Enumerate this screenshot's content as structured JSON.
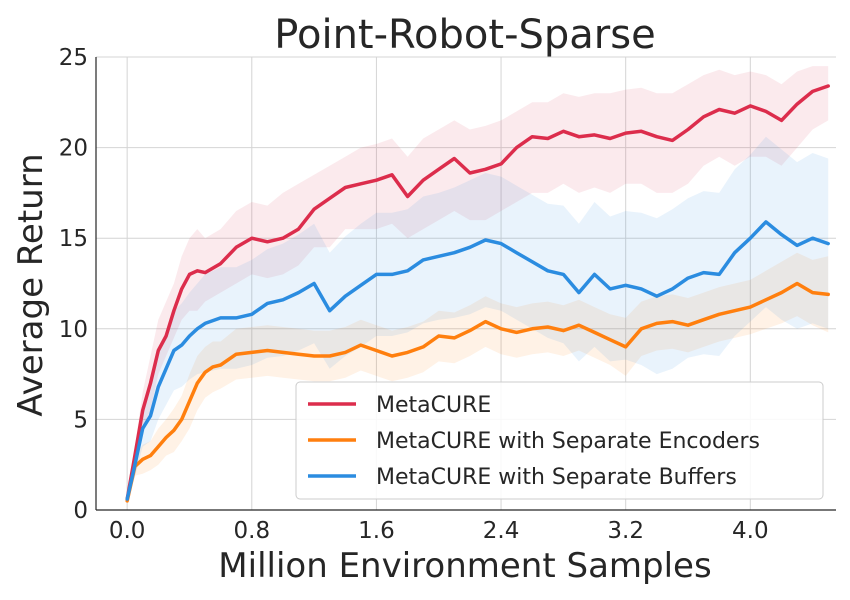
{
  "chart_data": {
    "type": "line",
    "title": "Point-Robot-Sparse",
    "xlabel": "Million Environment Samples",
    "ylabel": "Average Return",
    "xlim": [
      -0.2,
      4.55
    ],
    "ylim": [
      0,
      25
    ],
    "xticks": [
      0.0,
      0.8,
      1.6,
      2.4,
      3.2,
      4.0
    ],
    "xtick_labels": [
      "0.0",
      "0.8",
      "1.6",
      "2.4",
      "3.2",
      "4.0"
    ],
    "yticks": [
      0,
      5,
      10,
      15,
      20,
      25
    ],
    "ytick_labels": [
      "0",
      "5",
      "10",
      "15",
      "20",
      "25"
    ],
    "grid": true,
    "legend_position": "lower-right",
    "series": [
      {
        "name": "MetaCURE",
        "color": "#dc2d4c",
        "x": [
          0.0,
          0.05,
          0.1,
          0.15,
          0.2,
          0.25,
          0.3,
          0.35,
          0.4,
          0.45,
          0.5,
          0.6,
          0.7,
          0.8,
          0.9,
          1.0,
          1.1,
          1.2,
          1.3,
          1.4,
          1.5,
          1.6,
          1.7,
          1.8,
          1.9,
          2.0,
          2.1,
          2.2,
          2.3,
          2.4,
          2.5,
          2.6,
          2.7,
          2.8,
          2.9,
          3.0,
          3.1,
          3.2,
          3.3,
          3.4,
          3.5,
          3.6,
          3.7,
          3.8,
          3.9,
          4.0,
          4.1,
          4.2,
          4.3,
          4.4,
          4.5
        ],
        "y": [
          0.6,
          3.0,
          5.5,
          7.0,
          8.8,
          9.6,
          11.0,
          12.2,
          13.0,
          13.2,
          13.1,
          13.6,
          14.5,
          15.0,
          14.8,
          15.0,
          15.5,
          16.6,
          17.2,
          17.8,
          18.0,
          18.2,
          18.5,
          17.3,
          18.2,
          18.8,
          19.4,
          18.6,
          18.8,
          19.1,
          20.0,
          20.6,
          20.5,
          20.9,
          20.6,
          20.7,
          20.5,
          20.8,
          20.9,
          20.6,
          20.4,
          21.0,
          21.7,
          22.1,
          21.9,
          22.3,
          22.0,
          21.5,
          22.4,
          23.1,
          23.4
        ],
        "band": [
          [
            0.5,
            0.7
          ],
          [
            2.5,
            3.5
          ],
          [
            4.5,
            6.5
          ],
          [
            5.5,
            8.5
          ],
          [
            7.5,
            10.5
          ],
          [
            8.5,
            11.5
          ],
          [
            9.5,
            12.5
          ],
          [
            10.5,
            14.0
          ],
          [
            11.0,
            15.0
          ],
          [
            11.0,
            15.5
          ],
          [
            11.5,
            15.0
          ],
          [
            12.0,
            15.5
          ],
          [
            12.5,
            16.5
          ],
          [
            13.0,
            17.0
          ],
          [
            12.8,
            16.8
          ],
          [
            13.0,
            17.5
          ],
          [
            13.5,
            18.0
          ],
          [
            14.5,
            18.5
          ],
          [
            14.5,
            19.0
          ],
          [
            15.5,
            19.5
          ],
          [
            15.5,
            20.0
          ],
          [
            15.5,
            20.2
          ],
          [
            15.8,
            20.5
          ],
          [
            15.0,
            19.5
          ],
          [
            15.5,
            20.5
          ],
          [
            16.0,
            21.0
          ],
          [
            16.5,
            21.5
          ],
          [
            16.0,
            21.0
          ],
          [
            16.0,
            21.2
          ],
          [
            16.5,
            21.5
          ],
          [
            17.0,
            22.0
          ],
          [
            17.5,
            22.5
          ],
          [
            17.5,
            22.5
          ],
          [
            18.0,
            23.0
          ],
          [
            17.5,
            22.8
          ],
          [
            17.8,
            23.0
          ],
          [
            17.5,
            23.0
          ],
          [
            18.0,
            23.2
          ],
          [
            18.0,
            23.3
          ],
          [
            17.5,
            23.0
          ],
          [
            17.5,
            23.0
          ],
          [
            18.0,
            23.5
          ],
          [
            19.0,
            24.0
          ],
          [
            19.5,
            24.3
          ],
          [
            19.0,
            24.0
          ],
          [
            19.5,
            24.2
          ],
          [
            19.5,
            24.0
          ],
          [
            19.0,
            23.5
          ],
          [
            20.0,
            24.2
          ],
          [
            21.0,
            24.5
          ],
          [
            21.5,
            24.5
          ]
        ]
      },
      {
        "name": "MetaCURE with Separate Encoders",
        "color": "#ff7f0e",
        "x": [
          0.0,
          0.05,
          0.1,
          0.15,
          0.2,
          0.25,
          0.3,
          0.35,
          0.4,
          0.45,
          0.5,
          0.55,
          0.6,
          0.7,
          0.8,
          0.9,
          1.0,
          1.1,
          1.2,
          1.3,
          1.4,
          1.5,
          1.6,
          1.7,
          1.8,
          1.9,
          2.0,
          2.1,
          2.2,
          2.3,
          2.4,
          2.5,
          2.6,
          2.7,
          2.8,
          2.9,
          3.0,
          3.1,
          3.2,
          3.3,
          3.4,
          3.5,
          3.6,
          3.7,
          3.8,
          3.9,
          4.0,
          4.1,
          4.2,
          4.3,
          4.4,
          4.5
        ],
        "y": [
          0.5,
          2.4,
          2.8,
          3.0,
          3.5,
          4.0,
          4.4,
          5.0,
          6.0,
          7.0,
          7.6,
          7.9,
          8.0,
          8.6,
          8.7,
          8.8,
          8.7,
          8.6,
          8.5,
          8.5,
          8.7,
          9.1,
          8.8,
          8.5,
          8.7,
          9.0,
          9.6,
          9.5,
          9.9,
          10.4,
          10.0,
          9.8,
          10.0,
          10.1,
          9.9,
          10.2,
          9.8,
          9.4,
          9.0,
          10.0,
          10.3,
          10.4,
          10.2,
          10.5,
          10.8,
          11.0,
          11.2,
          11.6,
          12.0,
          12.5,
          12.0,
          11.9
        ],
        "band": [
          [
            0.4,
            0.6
          ],
          [
            1.9,
            2.9
          ],
          [
            2.0,
            3.6
          ],
          [
            2.2,
            3.8
          ],
          [
            2.5,
            4.5
          ],
          [
            3.0,
            5.0
          ],
          [
            3.2,
            5.6
          ],
          [
            3.8,
            6.3
          ],
          [
            4.5,
            7.5
          ],
          [
            5.5,
            8.5
          ],
          [
            6.2,
            9.0
          ],
          [
            6.5,
            9.3
          ],
          [
            6.7,
            9.3
          ],
          [
            7.2,
            10.0
          ],
          [
            7.3,
            10.1
          ],
          [
            7.4,
            10.2
          ],
          [
            7.3,
            10.1
          ],
          [
            7.2,
            10.0
          ],
          [
            7.1,
            9.9
          ],
          [
            7.1,
            9.9
          ],
          [
            7.3,
            10.1
          ],
          [
            7.7,
            10.5
          ],
          [
            7.4,
            10.2
          ],
          [
            7.1,
            9.9
          ],
          [
            7.3,
            10.1
          ],
          [
            7.6,
            10.4
          ],
          [
            8.2,
            11.0
          ],
          [
            8.1,
            10.9
          ],
          [
            8.5,
            11.3
          ],
          [
            9.0,
            11.8
          ],
          [
            8.6,
            11.4
          ],
          [
            8.4,
            11.2
          ],
          [
            8.6,
            11.4
          ],
          [
            8.7,
            11.5
          ],
          [
            8.5,
            11.3
          ],
          [
            8.8,
            11.6
          ],
          [
            8.4,
            11.2
          ],
          [
            8.0,
            10.8
          ],
          [
            7.4,
            10.6
          ],
          [
            8.5,
            11.5
          ],
          [
            8.8,
            11.8
          ],
          [
            8.9,
            11.9
          ],
          [
            8.7,
            11.7
          ],
          [
            9.0,
            12.0
          ],
          [
            9.3,
            12.3
          ],
          [
            9.5,
            12.5
          ],
          [
            9.7,
            12.7
          ],
          [
            10.0,
            13.2
          ],
          [
            10.3,
            13.7
          ],
          [
            10.7,
            14.2
          ],
          [
            10.2,
            13.8
          ],
          [
            9.8,
            14.0
          ]
        ]
      },
      {
        "name": "MetaCURE with Separate Buffers",
        "color": "#2b8ce0",
        "x": [
          0.0,
          0.05,
          0.1,
          0.15,
          0.2,
          0.25,
          0.3,
          0.35,
          0.4,
          0.45,
          0.5,
          0.6,
          0.7,
          0.8,
          0.9,
          1.0,
          1.1,
          1.2,
          1.3,
          1.4,
          1.5,
          1.6,
          1.7,
          1.8,
          1.9,
          2.0,
          2.1,
          2.2,
          2.3,
          2.4,
          2.5,
          2.6,
          2.7,
          2.8,
          2.9,
          3.0,
          3.1,
          3.2,
          3.3,
          3.4,
          3.5,
          3.6,
          3.7,
          3.8,
          3.9,
          4.0,
          4.1,
          4.2,
          4.3,
          4.4,
          4.5
        ],
        "y": [
          0.6,
          2.5,
          4.5,
          5.2,
          6.8,
          7.8,
          8.8,
          9.1,
          9.6,
          10.0,
          10.3,
          10.6,
          10.6,
          10.8,
          11.4,
          11.6,
          12.0,
          12.5,
          11.0,
          11.8,
          12.4,
          13.0,
          13.0,
          13.2,
          13.8,
          14.0,
          14.2,
          14.5,
          14.9,
          14.7,
          14.2,
          13.7,
          13.2,
          13.0,
          12.0,
          13.0,
          12.2,
          12.4,
          12.2,
          11.8,
          12.2,
          12.8,
          13.1,
          13.0,
          14.2,
          15.0,
          15.9,
          15.2,
          14.6,
          15.0,
          14.7
        ],
        "band": [
          [
            0.5,
            0.7
          ],
          [
            1.8,
            3.2
          ],
          [
            3.5,
            5.5
          ],
          [
            3.8,
            6.6
          ],
          [
            5.0,
            8.6
          ],
          [
            5.8,
            9.8
          ],
          [
            6.6,
            11.0
          ],
          [
            6.8,
            11.4
          ],
          [
            7.2,
            12.0
          ],
          [
            7.5,
            12.5
          ],
          [
            7.6,
            13.0
          ],
          [
            7.8,
            13.4
          ],
          [
            7.8,
            13.4
          ],
          [
            8.0,
            13.8
          ],
          [
            8.4,
            14.4
          ],
          [
            8.5,
            14.7
          ],
          [
            8.8,
            15.2
          ],
          [
            9.2,
            15.8
          ],
          [
            7.8,
            14.2
          ],
          [
            8.5,
            15.1
          ],
          [
            9.0,
            15.8
          ],
          [
            9.6,
            16.4
          ],
          [
            9.6,
            16.4
          ],
          [
            9.8,
            16.6
          ],
          [
            10.3,
            17.3
          ],
          [
            10.5,
            17.5
          ],
          [
            10.6,
            17.8
          ],
          [
            10.8,
            18.2
          ],
          [
            11.2,
            18.6
          ],
          [
            11.0,
            18.4
          ],
          [
            10.5,
            17.9
          ],
          [
            10.0,
            17.4
          ],
          [
            9.5,
            16.9
          ],
          [
            9.2,
            16.8
          ],
          [
            8.2,
            15.8
          ],
          [
            9.0,
            17.0
          ],
          [
            8.2,
            16.2
          ],
          [
            8.3,
            16.5
          ],
          [
            8.0,
            16.4
          ],
          [
            7.5,
            16.1
          ],
          [
            7.8,
            16.6
          ],
          [
            8.4,
            17.2
          ],
          [
            8.6,
            17.6
          ],
          [
            8.5,
            17.5
          ],
          [
            9.6,
            18.8
          ],
          [
            10.4,
            19.6
          ],
          [
            11.2,
            20.6
          ],
          [
            10.5,
            19.9
          ],
          [
            10.0,
            19.2
          ],
          [
            10.3,
            19.7
          ],
          [
            10.0,
            19.4
          ]
        ]
      }
    ]
  }
}
